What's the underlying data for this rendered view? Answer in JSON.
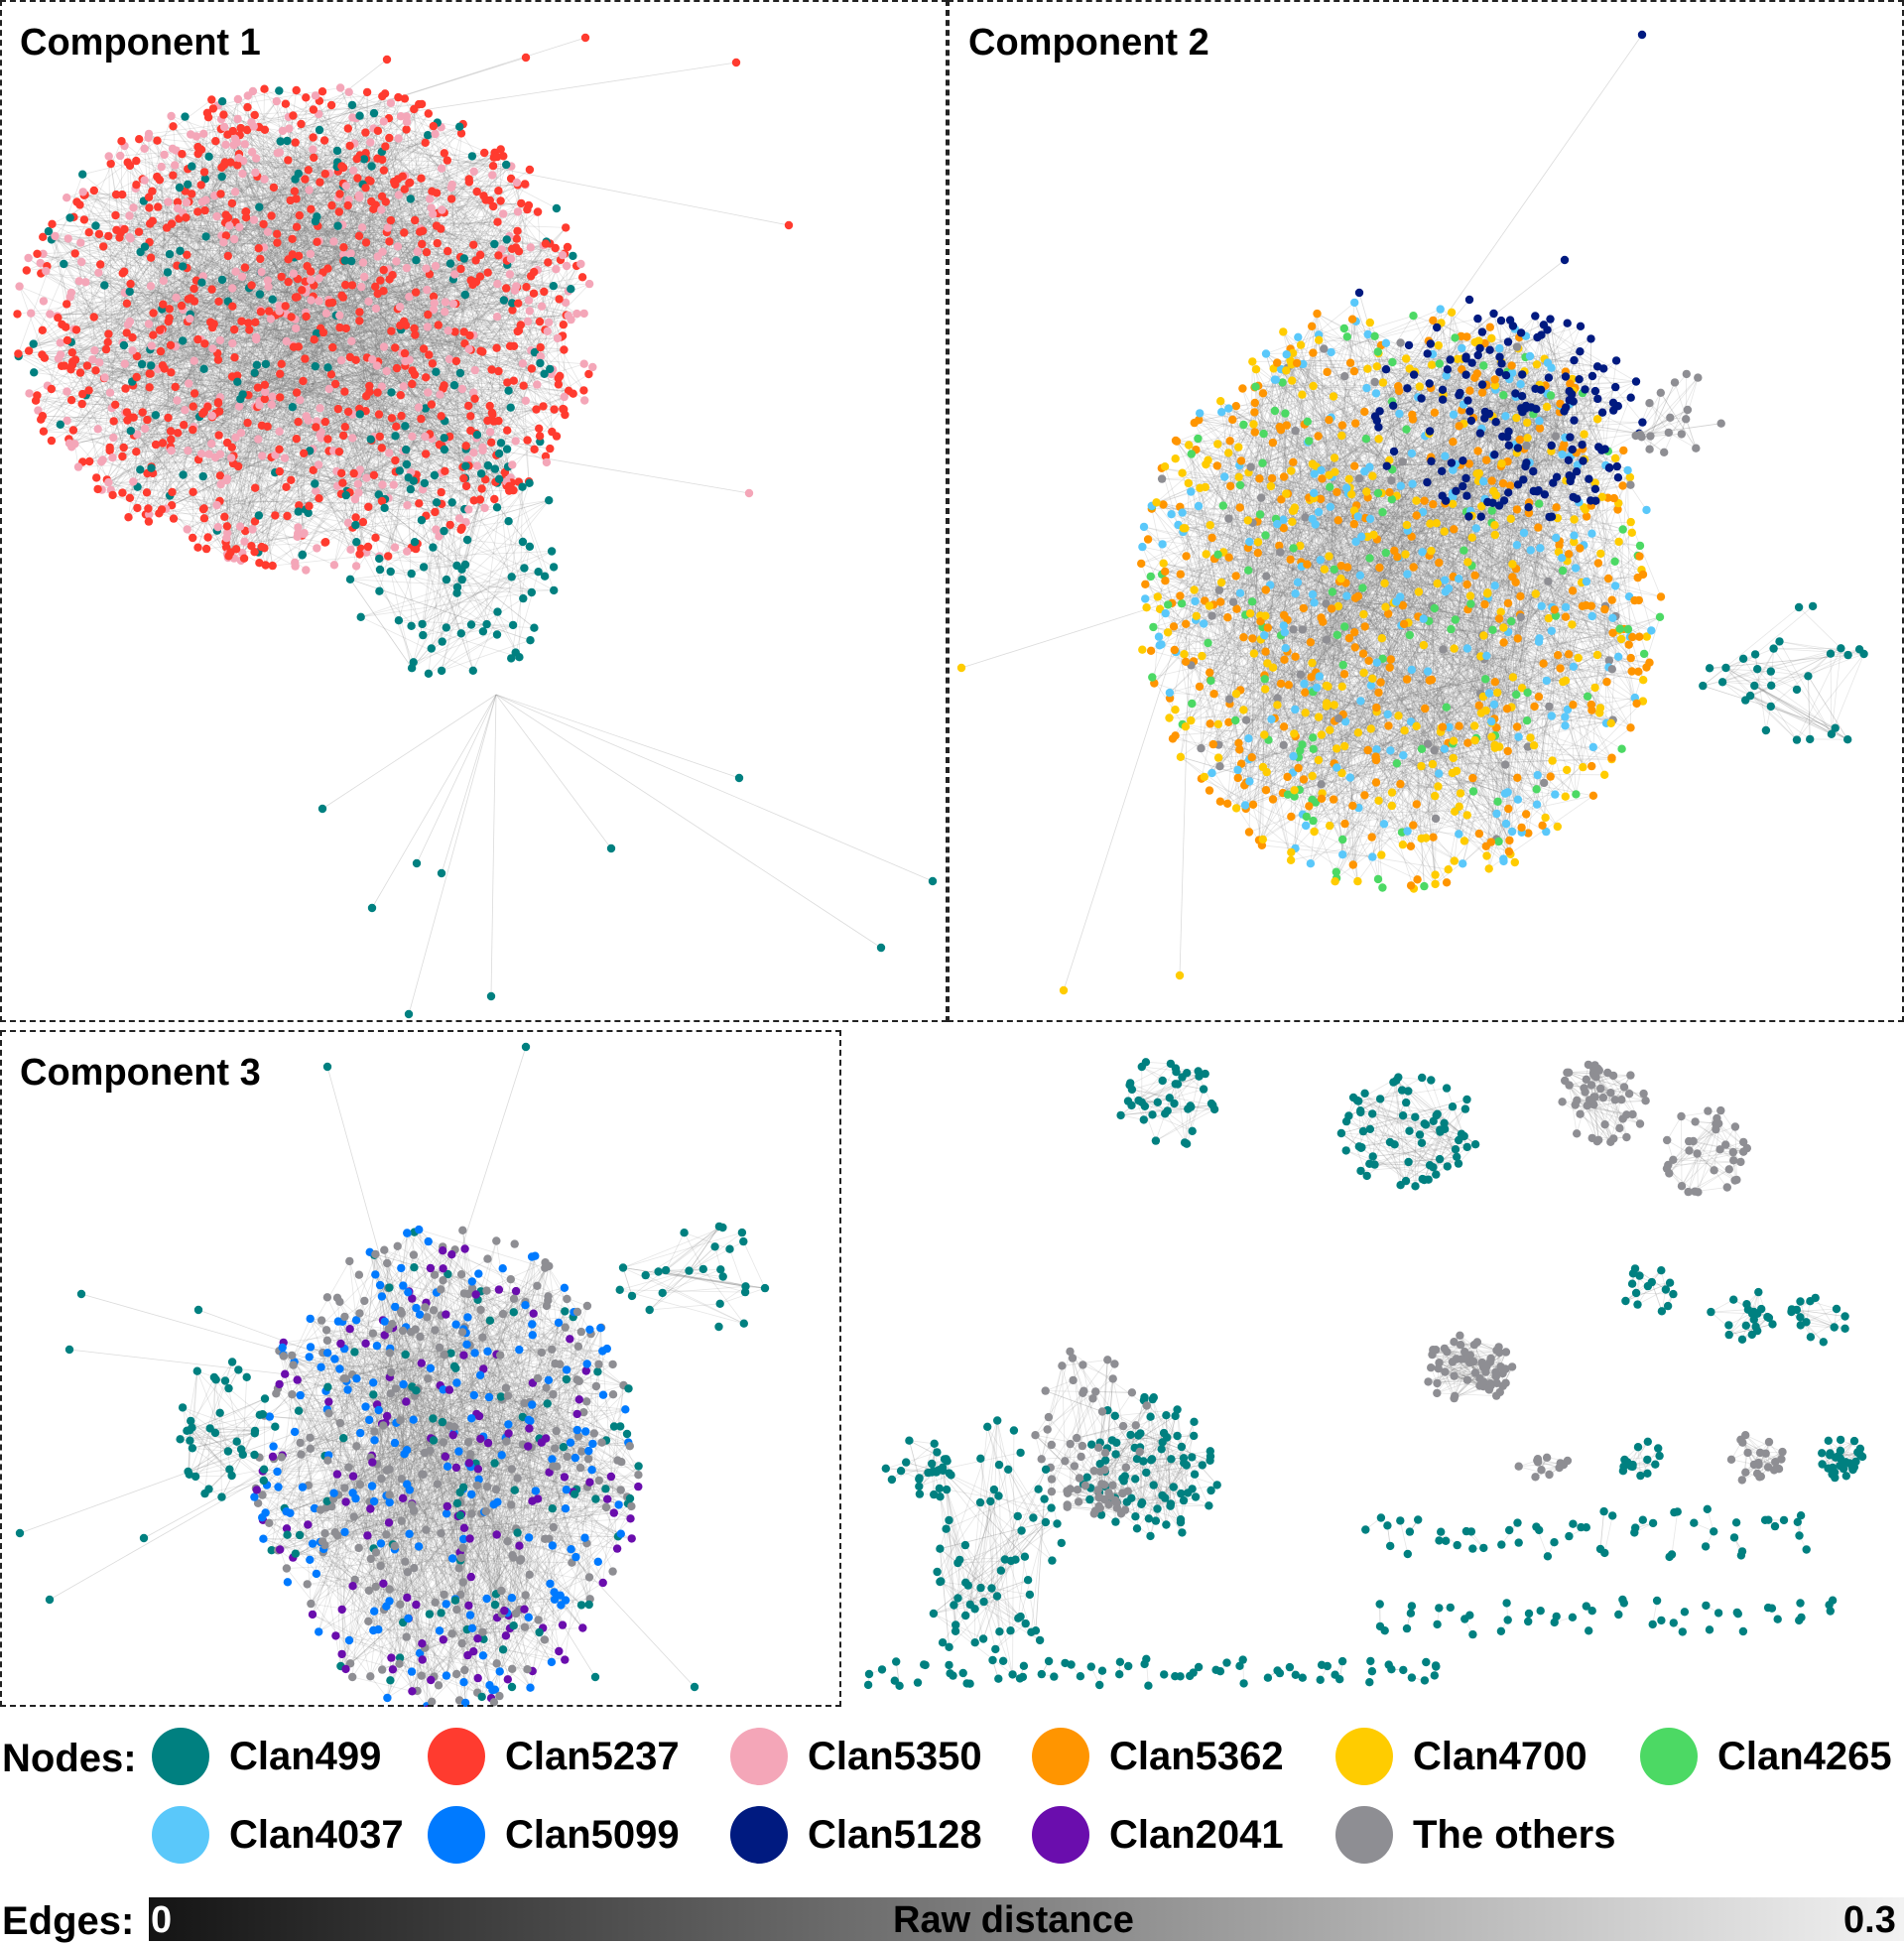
{
  "panels": {
    "component1": {
      "title": "Component 1"
    },
    "component2": {
      "title": "Component 2"
    },
    "component3": {
      "title": "Component 3"
    }
  },
  "legend": {
    "nodes_label": "Nodes:",
    "clans": [
      {
        "name": "Clan499",
        "color": "#008080"
      },
      {
        "name": "Clan5237",
        "color": "#ff3b2f"
      },
      {
        "name": "Clan5350",
        "color": "#f4a6b8"
      },
      {
        "name": "Clan5362",
        "color": "#ff9500"
      },
      {
        "name": "Clan4700",
        "color": "#ffcc00"
      },
      {
        "name": "Clan4265",
        "color": "#4cd964"
      },
      {
        "name": "Clan4037",
        "color": "#5ac8fa"
      },
      {
        "name": "Clan5099",
        "color": "#007aff"
      },
      {
        "name": "Clan5128",
        "color": "#001a80"
      },
      {
        "name": "Clan2041",
        "color": "#6a0dad"
      },
      {
        "name": "The others",
        "color": "#8e8e93"
      }
    ],
    "edges_label": "Edges:",
    "edge_min": "0",
    "edge_max": "0.3",
    "edge_title": "Raw distance"
  }
}
